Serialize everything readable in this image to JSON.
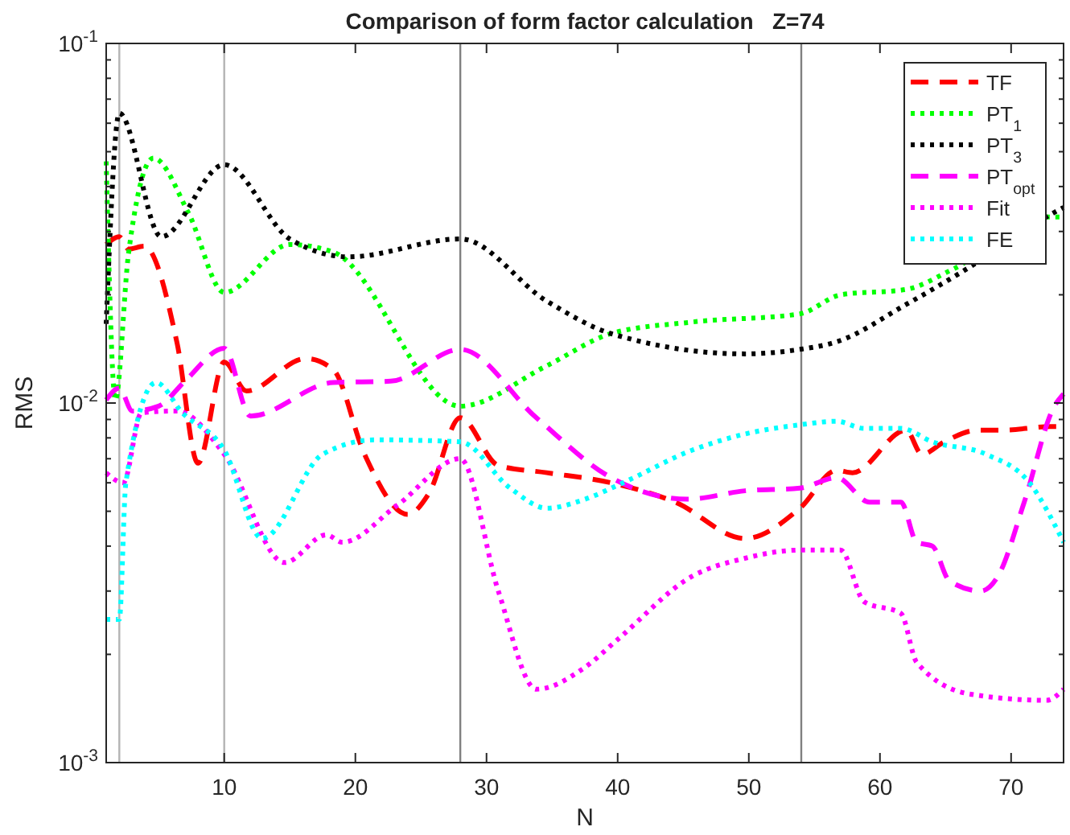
{
  "chart_data": {
    "type": "line",
    "title": "Comparison of form factor calculation   Z=74",
    "xlabel": "N",
    "ylabel": "RMS",
    "log": "y",
    "grid": false,
    "legend": "top right",
    "xlim": [
      1,
      74
    ],
    "xticks": [
      10,
      20,
      30,
      40,
      50,
      60,
      70
    ],
    "ylim": [
      0.001,
      0.1
    ],
    "yticks": [
      {
        "value": 0.001,
        "label": "10$^{-3}$"
      },
      {
        "value": 0.002,
        "label": null
      },
      {
        "value": 0.003,
        "label": null
      },
      {
        "value": 0.004,
        "label": null
      },
      {
        "value": 0.005,
        "label": null
      },
      {
        "value": 0.006,
        "label": null
      },
      {
        "value": 0.007,
        "label": null
      },
      {
        "value": 0.008,
        "label": null
      },
      {
        "value": 0.009,
        "label": null
      },
      {
        "value": 0.01,
        "label": "10$^{-2}$"
      },
      {
        "value": 0.02,
        "label": null
      },
      {
        "value": 0.03,
        "label": null
      },
      {
        "value": 0.04,
        "label": null
      },
      {
        "value": 0.05,
        "label": null
      },
      {
        "value": 0.06,
        "label": null
      },
      {
        "value": 0.07,
        "label": null
      },
      {
        "value": 0.08,
        "label": null
      },
      {
        "value": 0.09,
        "label": null
      },
      {
        "value": 0.1,
        "label": "10$^{-1}$"
      }
    ],
    "ref_lines": [
      {
        "axis": "x",
        "value": 2,
        "color": "#b4b4b4"
      },
      {
        "axis": "x",
        "value": 10,
        "color": "#b4b4b4"
      },
      {
        "axis": "x",
        "value": 28,
        "color": "#808080"
      },
      {
        "axis": "x",
        "value": 54,
        "color": "#808080"
      }
    ],
    "series": [
      {
        "name": "TF",
        "color": "#ff0000",
        "line_style": "dashed",
        "x": [
          1,
          2,
          2.7,
          3.9,
          6.4,
          8,
          10,
          11.7,
          16.2,
          18.3,
          20.7,
          24,
          25.6,
          28,
          30.9,
          34.6,
          39.5,
          44.4,
          49.7,
          53.9,
          56.7,
          57.9,
          62,
          63.2,
          64.9,
          67.4,
          69.3,
          73,
          74
        ],
        "values": [
          0.0276,
          0.029,
          0.0268,
          0.0273,
          0.0147,
          0.0068,
          0.013,
          0.0108,
          0.0133,
          0.0124,
          0.0072,
          0.0049,
          0.0056,
          0.0091,
          0.0067,
          0.0064,
          0.006,
          0.0053,
          0.0042,
          0.0051,
          0.0065,
          0.0064,
          0.0084,
          0.0072,
          0.0078,
          0.0084,
          0.0084,
          0.0086,
          0.0086
        ]
      },
      {
        "name": "PT$_{1}$",
        "color": "#00ff00",
        "line_style": "dotted",
        "x": [
          1,
          1.7,
          2.7,
          4.6,
          7.3,
          10,
          15,
          18.3,
          28,
          34.6,
          39.5,
          45.7,
          53.9,
          57,
          62,
          65.5,
          72.7,
          74
        ],
        "values": [
          0.047,
          0.0102,
          0.026,
          0.048,
          0.0336,
          0.0203,
          0.0276,
          0.0263,
          0.0098,
          0.0127,
          0.0156,
          0.0168,
          0.0177,
          0.02,
          0.0207,
          0.0235,
          0.0329,
          0.0329
        ]
      },
      {
        "name": "PT$_{3}$",
        "color": "#000000",
        "line_style": "dotted",
        "x": [
          1,
          2,
          5.2,
          10,
          15,
          19.5,
          28,
          34.6,
          39.5,
          49.7,
          53.9,
          56.7,
          62,
          66.2,
          73.3,
          74
        ],
        "values": [
          0.0166,
          0.064,
          0.029,
          0.046,
          0.0286,
          0.0255,
          0.0286,
          0.0192,
          0.0156,
          0.0137,
          0.0141,
          0.0148,
          0.0188,
          0.0231,
          0.0339,
          0.035
        ]
      },
      {
        "name": "PT$_{opt}$",
        "color": "#ff00ff",
        "line_style": "dashed",
        "x": [
          1,
          2,
          3,
          5,
          7,
          10,
          12,
          18.3,
          22.7,
          28,
          33.8,
          39.5,
          45.3,
          49.7,
          53.9,
          56.7,
          59.2,
          61.6,
          62.8,
          64,
          65.3,
          67.7,
          69,
          71,
          73.3,
          74
        ],
        "values": [
          0.0102,
          0.011,
          0.0095,
          0.0098,
          0.0115,
          0.0142,
          0.0092,
          0.0114,
          0.0115,
          0.0141,
          0.0091,
          0.0062,
          0.0054,
          0.0057,
          0.0058,
          0.0062,
          0.0053,
          0.0053,
          0.0041,
          0.004,
          0.0032,
          0.003,
          0.0033,
          0.0053,
          0.0098,
          0.0106
        ]
      },
      {
        "name": "Fit",
        "color": "#ff00ff",
        "line_style": "dotted",
        "x": [
          1,
          2.3,
          3.7,
          6.4,
          10,
          14.6,
          17.8,
          19,
          23.2,
          28,
          30.9,
          33.8,
          37.5,
          40,
          45.7,
          49.7,
          53.9,
          57,
          58.8,
          61.6,
          62.8,
          66.9,
          72.7,
          74
        ],
        "values": [
          0.0064,
          0.006,
          0.0094,
          0.0095,
          0.0072,
          0.0036,
          0.0043,
          0.0041,
          0.0052,
          0.007,
          0.003,
          0.0016,
          0.00184,
          0.0022,
          0.0033,
          0.0037,
          0.0039,
          0.0039,
          0.0028,
          0.0026,
          0.0019,
          0.00155,
          0.00149,
          0.0016
        ]
      },
      {
        "name": "FE",
        "color": "#00ffff",
        "line_style": "dotted",
        "x": [
          1,
          2,
          2.5,
          4.8,
          6.8,
          10,
          12.9,
          17.5,
          21.5,
          28,
          31.8,
          34.6,
          37.5,
          40.4,
          45.7,
          49.7,
          53.9,
          56.7,
          58.8,
          61.6,
          64,
          68.1,
          71.4,
          74
        ],
        "values": [
          0.0025,
          0.0025,
          0.006,
          0.0114,
          0.0094,
          0.0074,
          0.0042,
          0.0072,
          0.0079,
          0.0078,
          0.0058,
          0.0051,
          0.0054,
          0.006,
          0.0074,
          0.0082,
          0.0087,
          0.0089,
          0.0085,
          0.0085,
          0.0078,
          0.0072,
          0.006,
          0.0041
        ]
      }
    ]
  }
}
